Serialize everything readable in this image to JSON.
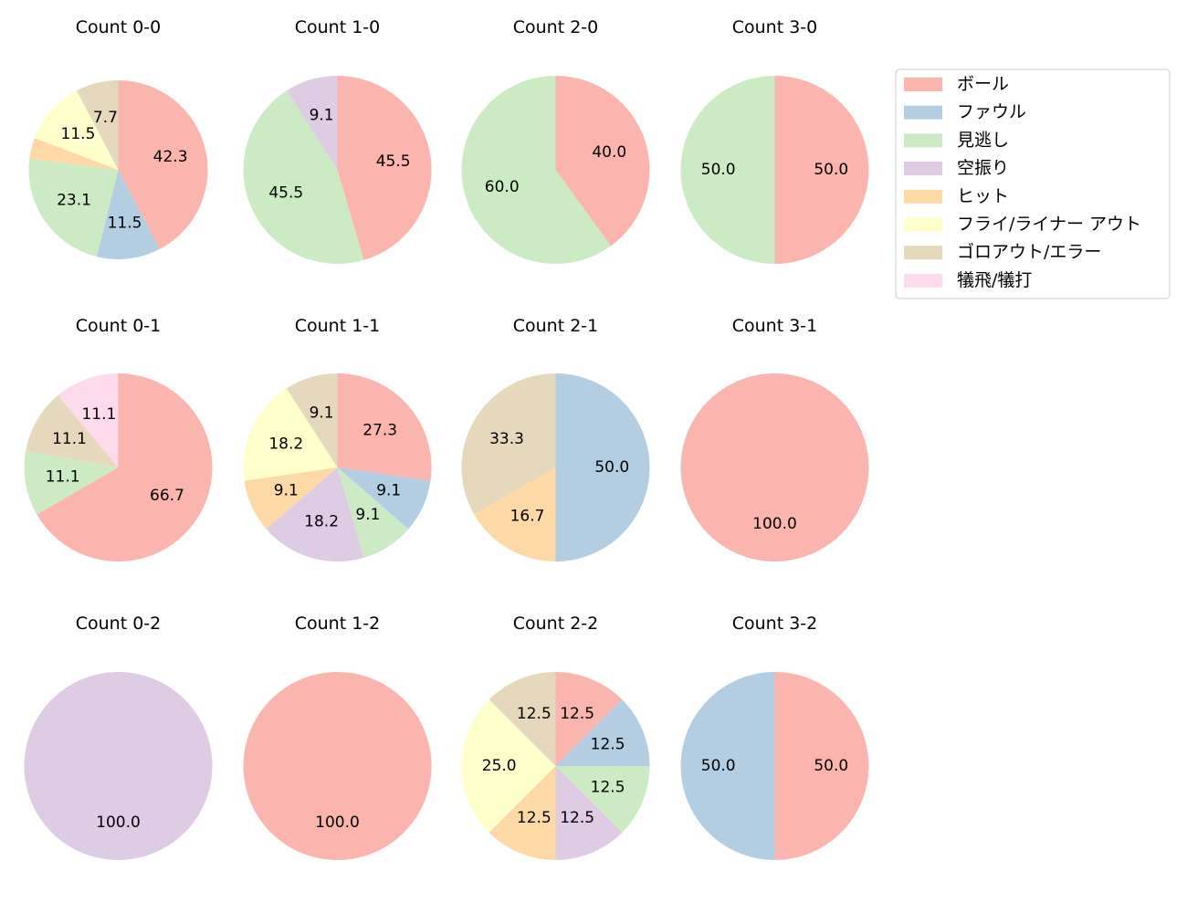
{
  "legend": [
    {
      "key": "ball",
      "label": "ボール",
      "color": "#fbb4ae"
    },
    {
      "key": "foul",
      "label": "ファウル",
      "color": "#b3cde3"
    },
    {
      "key": "called",
      "label": "見逃し",
      "color": "#ccebc5"
    },
    {
      "key": "swinging",
      "label": "空振り",
      "color": "#decbe4"
    },
    {
      "key": "hit",
      "label": "ヒット",
      "color": "#fed9a6"
    },
    {
      "key": "flyout",
      "label": "フライ/ライナー アウト",
      "color": "#ffffcc"
    },
    {
      "key": "groundout",
      "label": "ゴロアウト/エラー",
      "color": "#e5d8bd"
    },
    {
      "key": "sacrifice",
      "label": "犠飛/犠打",
      "color": "#fddaec"
    }
  ],
  "chart_data": [
    {
      "type": "pie",
      "title": "Count 0-0",
      "slices": [
        {
          "category": "ball",
          "value": 42.3
        },
        {
          "category": "foul",
          "value": 11.5
        },
        {
          "category": "called",
          "value": 23.1
        },
        {
          "category": "hit",
          "value": 3.8
        },
        {
          "category": "flyout",
          "value": 11.5
        },
        {
          "category": "groundout",
          "value": 7.7
        }
      ]
    },
    {
      "type": "pie",
      "title": "Count 1-0",
      "slices": [
        {
          "category": "ball",
          "value": 45.5
        },
        {
          "category": "called",
          "value": 45.5
        },
        {
          "category": "swinging",
          "value": 9.1
        }
      ]
    },
    {
      "type": "pie",
      "title": "Count 2-0",
      "slices": [
        {
          "category": "ball",
          "value": 40.0
        },
        {
          "category": "called",
          "value": 60.0
        }
      ]
    },
    {
      "type": "pie",
      "title": "Count 3-0",
      "slices": [
        {
          "category": "ball",
          "value": 50.0
        },
        {
          "category": "called",
          "value": 50.0
        }
      ]
    },
    {
      "type": "pie",
      "title": "Count 0-1",
      "slices": [
        {
          "category": "ball",
          "value": 66.7
        },
        {
          "category": "called",
          "value": 11.1
        },
        {
          "category": "groundout",
          "value": 11.1
        },
        {
          "category": "sacrifice",
          "value": 11.1
        }
      ]
    },
    {
      "type": "pie",
      "title": "Count 1-1",
      "slices": [
        {
          "category": "ball",
          "value": 27.3
        },
        {
          "category": "foul",
          "value": 9.1
        },
        {
          "category": "called",
          "value": 9.1
        },
        {
          "category": "swinging",
          "value": 18.2
        },
        {
          "category": "hit",
          "value": 9.1
        },
        {
          "category": "flyout",
          "value": 18.2
        },
        {
          "category": "groundout",
          "value": 9.1
        }
      ]
    },
    {
      "type": "pie",
      "title": "Count 2-1",
      "slices": [
        {
          "category": "foul",
          "value": 50.0
        },
        {
          "category": "hit",
          "value": 16.7
        },
        {
          "category": "groundout",
          "value": 33.3
        }
      ]
    },
    {
      "type": "pie",
      "title": "Count 3-1",
      "slices": [
        {
          "category": "ball",
          "value": 100.0
        }
      ]
    },
    {
      "type": "pie",
      "title": "Count 0-2",
      "slices": [
        {
          "category": "swinging",
          "value": 100.0
        }
      ]
    },
    {
      "type": "pie",
      "title": "Count 1-2",
      "slices": [
        {
          "category": "ball",
          "value": 100.0
        }
      ]
    },
    {
      "type": "pie",
      "title": "Count 2-2",
      "slices": [
        {
          "category": "ball",
          "value": 12.5
        },
        {
          "category": "foul",
          "value": 12.5
        },
        {
          "category": "called",
          "value": 12.5
        },
        {
          "category": "swinging",
          "value": 12.5
        },
        {
          "category": "hit",
          "value": 12.5
        },
        {
          "category": "flyout",
          "value": 25.0
        },
        {
          "category": "groundout",
          "value": 12.5
        }
      ]
    },
    {
      "type": "pie",
      "title": "Count 3-2",
      "slices": [
        {
          "category": "ball",
          "value": 50.0
        },
        {
          "category": "foul",
          "value": 50.0
        }
      ]
    }
  ]
}
